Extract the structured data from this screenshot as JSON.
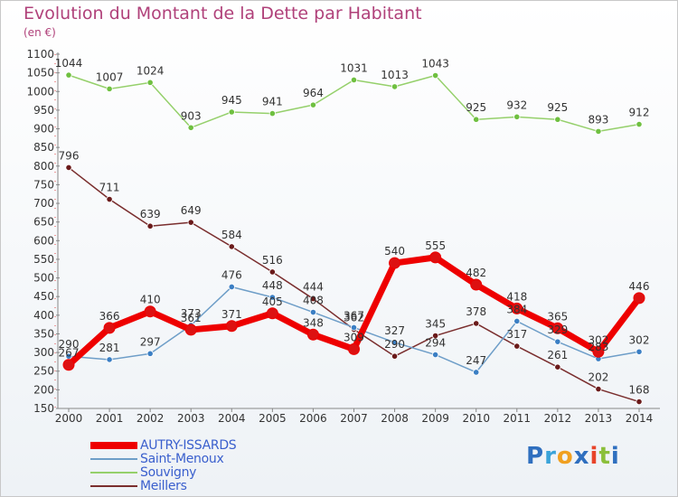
{
  "header": {
    "title": "Evolution du Montant de la Dette par Habitant",
    "subtitle": "(en €)"
  },
  "logo": {
    "text": "Proxiti",
    "letter_colors": [
      "#2f6fbf",
      "#3aa3d9",
      "#f0a020",
      "#2f6fbf",
      "#e8442a",
      "#8bbf3a",
      "#2f6fbf"
    ]
  },
  "chart_data": {
    "type": "line",
    "title": "Evolution du Montant de la Dette par Habitant",
    "subtitle": "(en €)",
    "ylim": [
      150,
      1100
    ],
    "yticks": [
      150,
      200,
      250,
      300,
      350,
      400,
      450,
      500,
      550,
      600,
      650,
      700,
      750,
      800,
      850,
      900,
      950,
      1000,
      1050,
      1100
    ],
    "grid": false,
    "legend_position": "bottom-left",
    "categories": [
      "2000",
      "2001",
      "2002",
      "2003",
      "2004",
      "2005",
      "2006",
      "2007",
      "2008",
      "2009",
      "2010",
      "2011",
      "2012",
      "2013",
      "2014"
    ],
    "series": [
      {
        "name": "AUTRY-ISSARDS",
        "color": "#ee0000",
        "marker": "#dd1111",
        "width": 7,
        "values": [
          267,
          366,
          410,
          361,
          371,
          405,
          348,
          309,
          540,
          555,
          482,
          418,
          365,
          302,
          446
        ],
        "labels": [
          "267",
          "366",
          "410",
          "361",
          "371",
          "405",
          "348",
          "309",
          "540",
          "555",
          "482",
          "418",
          "365",
          "302",
          "446"
        ]
      },
      {
        "name": "Saint-Menoux",
        "color": "#6e9ec8",
        "marker": "#3b7fc4",
        "width": 1.5,
        "values": [
          290,
          281,
          297,
          373,
          476,
          448,
          408,
          367,
          327,
          294,
          247,
          384,
          329,
          283,
          302
        ],
        "labels": [
          "290",
          "281",
          "297",
          "373",
          "476",
          "448",
          "408",
          "367",
          "327",
          "294",
          "247",
          "384",
          "329",
          "283",
          "302"
        ]
      },
      {
        "name": "Souvigny",
        "color": "#95d06b",
        "marker": "#6fc040",
        "width": 1.5,
        "values": [
          1044,
          1007,
          1024,
          903,
          945,
          941,
          964,
          1031,
          1013,
          1043,
          925,
          932,
          925,
          893,
          912
        ],
        "labels": [
          "1044",
          "1007",
          "1024",
          "903",
          "945",
          "941",
          "964",
          "1031",
          "1013",
          "1043",
          "925",
          "932",
          "925",
          "893",
          "912"
        ]
      },
      {
        "name": "Meillers",
        "color": "#7a2e2e",
        "marker": "#6a1a1a",
        "width": 1.5,
        "values": [
          796,
          711,
          639,
          649,
          584,
          516,
          444,
          362,
          290,
          345,
          378,
          317,
          261,
          202,
          168
        ],
        "labels": [
          "796",
          "711",
          "639",
          "649",
          "584",
          "516",
          "444",
          "362",
          "290",
          "345",
          "378",
          "317",
          "261",
          "202",
          "168"
        ]
      }
    ]
  }
}
